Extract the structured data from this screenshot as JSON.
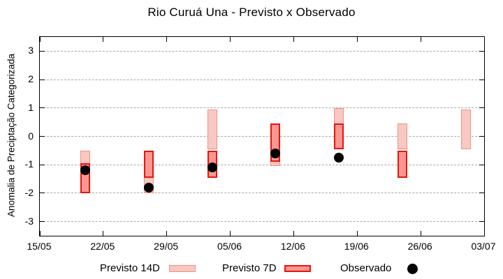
{
  "title": "Rio Curuá Una - Previsto x Observado",
  "y_axis_title": "Anomalia de Preciptação Categorizada",
  "legend": {
    "items": [
      {
        "label": "Previsto 14D",
        "swatch": "light-pink-rect"
      },
      {
        "label": "Previsto 7D",
        "swatch": "red-rect"
      },
      {
        "label": "Observado",
        "swatch": "black-dot"
      }
    ]
  },
  "colors": {
    "previsto_14d_fill": "#f9c8c3",
    "previsto_14d_border": "#f09086",
    "previsto_7d_fill": "#fa9790",
    "previsto_7d_border": "#e81410",
    "observado": "#000000",
    "gridline": "#a8a8a8",
    "frame": "#000000"
  },
  "chart_data": {
    "type": "bar",
    "subtype": "range-bars-with-scatter-overlay",
    "title": "Rio Curuá Una - Previsto x Observado",
    "xlabel": "",
    "ylabel": "Anomalia de Preciptação Categorizada",
    "ylim": [
      -3.5,
      3.5
    ],
    "xlim_days": [
      0,
      49
    ],
    "grid": true,
    "legend_position": "bottom",
    "y_ticks": [
      3,
      2,
      1,
      0,
      -1,
      -2,
      -3
    ],
    "x_ticks": [
      {
        "day": 0,
        "label": "15/05"
      },
      {
        "day": 7,
        "label": "22/05"
      },
      {
        "day": 14,
        "label": "29/05"
      },
      {
        "day": 21,
        "label": "05/06"
      },
      {
        "day": 28,
        "label": "12/06"
      },
      {
        "day": 35,
        "label": "19/06"
      },
      {
        "day": 42,
        "label": "26/06"
      },
      {
        "day": 49,
        "label": "03/07"
      }
    ],
    "series": [
      {
        "name": "Previsto 14D",
        "type": "range-bar",
        "fill": "#f9c8c3",
        "border": "#f09086"
      },
      {
        "name": "Previsto 7D",
        "type": "range-bar",
        "fill": "#fa9790",
        "border": "#e81410"
      },
      {
        "name": "Observado",
        "type": "scatter",
        "color": "#000000"
      }
    ],
    "points": [
      {
        "day": 5,
        "previsto_14d": [
          -2.0,
          -0.5
        ],
        "previsto_7d": [
          -2.0,
          -0.95
        ],
        "observado": -1.2
      },
      {
        "day": 12,
        "previsto_14d": [
          -2.0,
          -0.5
        ],
        "previsto_7d": [
          -1.45,
          -0.5
        ],
        "observado": -1.8
      },
      {
        "day": 19,
        "previsto_14d": [
          -0.45,
          0.95
        ],
        "previsto_7d": [
          -1.45,
          -0.5
        ],
        "observado": -1.1
      },
      {
        "day": 26,
        "previsto_14d": [
          -1.05,
          0.45
        ],
        "previsto_7d": [
          -0.9,
          0.45
        ],
        "observado": -0.6
      },
      {
        "day": 33,
        "previsto_14d": [
          -0.45,
          1.0
        ],
        "previsto_7d": [
          -0.45,
          0.45
        ],
        "observado": -0.75
      },
      {
        "day": 40,
        "previsto_14d": [
          -0.45,
          0.45
        ],
        "previsto_7d": [
          -1.45,
          -0.5
        ],
        "observado": null
      },
      {
        "day": 47,
        "previsto_14d": [
          -0.45,
          0.95
        ],
        "previsto_7d": null,
        "observado": null
      }
    ]
  }
}
